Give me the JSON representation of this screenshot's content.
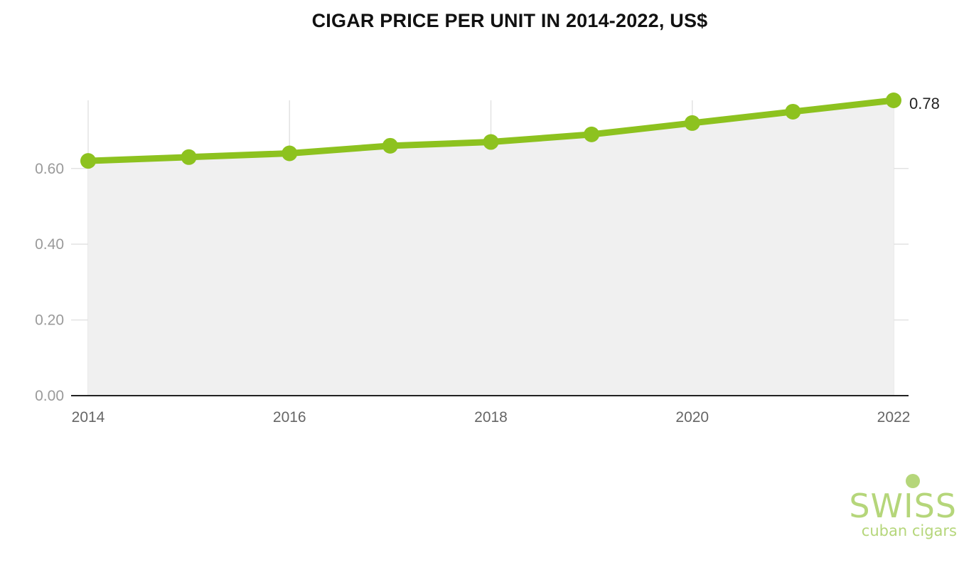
{
  "chart_data": {
    "type": "area",
    "title": "CIGAR PRICE PER UNIT IN 2014-2022, US$",
    "xlabel": "",
    "ylabel": "",
    "x": [
      2014,
      2015,
      2016,
      2017,
      2018,
      2019,
      2020,
      2021,
      2022
    ],
    "series": [
      {
        "values": [
          0.62,
          0.63,
          0.64,
          0.66,
          0.67,
          0.69,
          0.72,
          0.75,
          0.78
        ]
      }
    ],
    "x_tick_labels": [
      "2014",
      "2016",
      "2018",
      "2020",
      "2022"
    ],
    "x_tick_values": [
      2014,
      2016,
      2018,
      2020,
      2022
    ],
    "y_tick_labels": [
      "0.00",
      "0.20",
      "0.40",
      "0.60"
    ],
    "y_tick_values": [
      0,
      0.2,
      0.4,
      0.6
    ],
    "xlim": [
      2014,
      2022
    ],
    "ylim": [
      0,
      0.78
    ],
    "data_label": "0.78",
    "grid": true,
    "legend": "none",
    "colors": {
      "line": "#8dc21f",
      "area": "#f0f0f0",
      "grid": "#e3e3e3",
      "axis": "#222222"
    }
  },
  "logo": {
    "main": "SWISS",
    "sub": "cuban cigars"
  }
}
